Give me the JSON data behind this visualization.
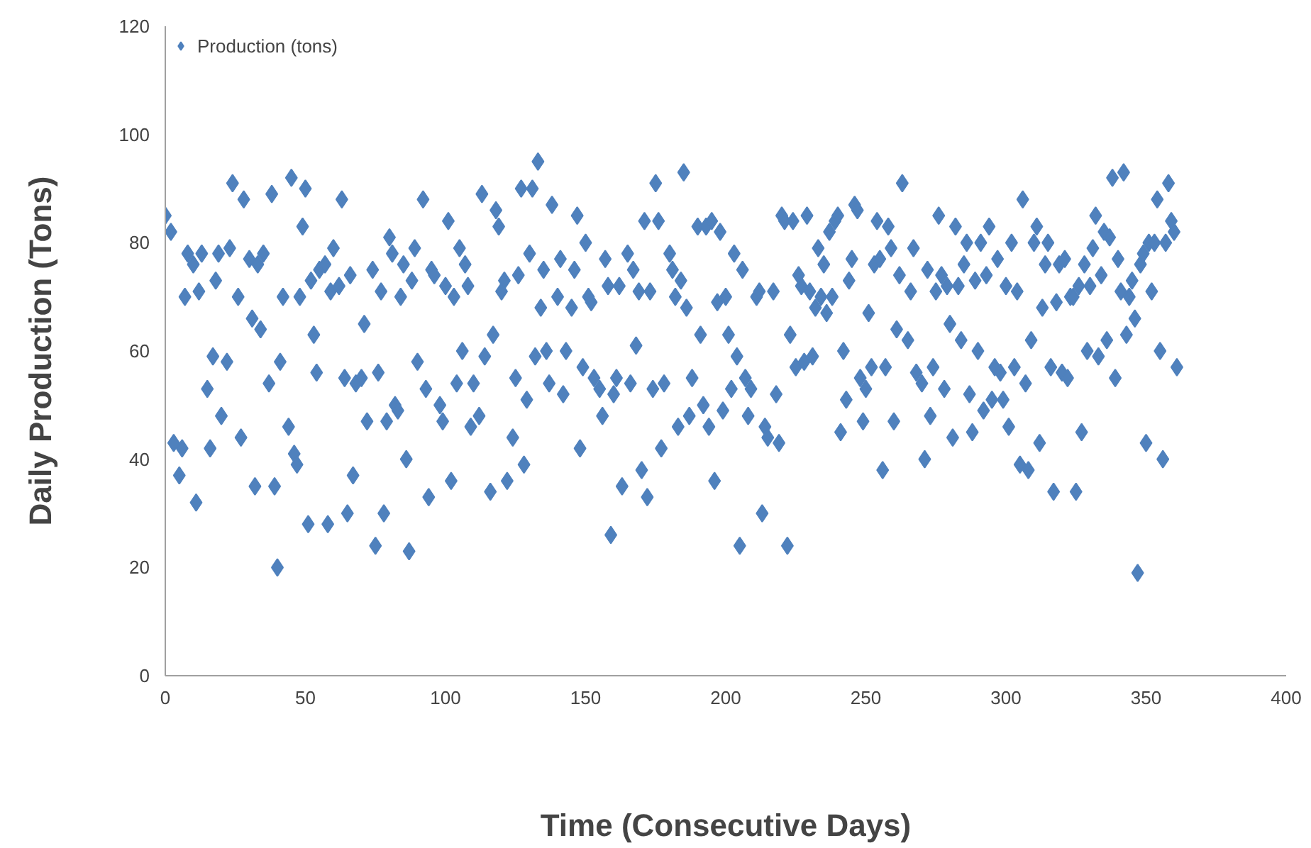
{
  "chart_data": {
    "type": "scatter",
    "xlabel": "Time (Consecutive Days)",
    "ylabel": "Daily Production (Tons)",
    "xlim": [
      0,
      400
    ],
    "xticks": [
      0,
      50,
      100,
      150,
      200,
      250,
      300,
      350,
      400
    ],
    "ylim": [
      0,
      120
    ],
    "yticks": [
      0,
      20,
      40,
      60,
      80,
      100,
      120
    ],
    "grid": false,
    "legend": "top left",
    "marker": "diamond",
    "x": [
      0,
      2,
      3,
      5,
      6,
      7,
      8,
      10,
      11,
      12,
      13,
      15,
      16,
      17,
      18,
      19,
      20,
      22,
      23,
      24,
      26,
      27,
      28,
      30,
      31,
      32,
      33,
      34,
      35,
      37,
      38,
      39,
      40,
      41,
      42,
      44,
      45,
      46,
      47,
      48,
      49,
      50,
      51,
      52,
      53,
      54,
      55,
      57,
      58,
      59,
      60,
      62,
      63,
      64,
      65,
      66,
      67,
      68,
      70,
      71,
      72,
      74,
      75,
      76,
      77,
      78,
      79,
      80,
      81,
      82,
      83,
      84,
      85,
      86,
      87,
      88,
      89,
      90,
      92,
      93,
      94,
      95,
      96,
      98,
      99,
      100,
      101,
      102,
      103,
      104,
      105,
      106,
      107,
      108,
      109,
      110,
      112,
      113,
      114,
      116,
      117,
      118,
      119,
      120,
      121,
      122,
      124,
      125,
      126,
      127,
      128,
      129,
      130,
      131,
      132,
      133,
      134,
      135,
      136,
      137,
      138,
      140,
      141,
      142,
      143,
      145,
      146,
      147,
      148,
      149,
      150,
      151,
      152,
      153,
      155,
      156,
      157,
      158,
      159,
      160,
      161,
      162,
      163,
      165,
      166,
      167,
      168,
      169,
      170,
      171,
      172,
      173,
      174,
      175,
      176,
      177,
      178,
      180,
      181,
      182,
      183,
      184,
      185,
      186,
      187,
      188,
      190,
      191,
      192,
      193,
      194,
      195,
      196,
      197,
      198,
      199,
      200,
      201,
      202,
      203,
      204,
      205,
      206,
      207,
      208,
      209,
      211,
      212,
      213,
      214,
      215,
      217,
      218,
      219,
      220,
      221,
      222,
      223,
      224,
      225,
      226,
      227,
      228,
      229,
      230,
      231,
      232,
      233,
      234,
      235,
      236,
      237,
      238,
      239,
      240,
      241,
      242,
      243,
      244,
      245,
      246,
      247,
      248,
      249,
      250,
      251,
      252,
      253,
      254,
      255,
      256,
      257,
      258,
      259,
      260,
      261,
      262,
      263,
      265,
      266,
      267,
      268,
      270,
      271,
      272,
      273,
      274,
      275,
      276,
      277,
      278,
      279,
      280,
      281,
      282,
      283,
      284,
      285,
      286,
      287,
      288,
      289,
      290,
      291,
      292,
      293,
      294,
      295,
      296,
      297,
      298,
      299,
      300,
      301,
      302,
      303,
      304,
      305,
      306,
      307,
      308,
      309,
      310,
      311,
      312,
      313,
      314,
      315,
      316,
      317,
      318,
      319,
      320,
      321,
      322,
      323,
      324,
      325,
      326,
      327,
      328,
      329,
      330,
      331,
      332,
      333,
      334,
      335,
      336,
      337,
      338,
      339,
      340,
      341,
      342,
      343,
      344,
      345,
      346,
      347,
      348,
      349,
      350,
      351,
      352,
      353,
      354,
      355,
      356,
      357,
      358,
      359,
      360,
      361
    ],
    "series": [
      {
        "name": "Production (tons)",
        "color": "#4f81bd",
        "values": [
          85,
          82,
          43,
          37,
          42,
          70,
          78,
          76,
          32,
          71,
          78,
          53,
          42,
          59,
          73,
          78,
          48,
          58,
          79,
          91,
          70,
          44,
          88,
          77,
          66,
          35,
          76,
          64,
          78,
          54,
          89,
          35,
          20,
          58,
          70,
          46,
          92,
          41,
          39,
          70,
          83,
          90,
          28,
          73,
          63,
          56,
          75,
          76,
          28,
          71,
          79,
          72,
          88,
          55,
          30,
          74,
          37,
          54,
          55,
          65,
          47,
          75,
          24,
          56,
          71,
          30,
          47,
          81,
          78,
          50,
          49,
          70,
          76,
          40,
          23,
          73,
          79,
          58,
          88,
          53,
          33,
          75,
          74,
          50,
          47,
          72,
          84,
          36,
          70,
          54,
          79,
          60,
          76,
          72,
          46,
          54,
          48,
          89,
          59,
          34,
          63,
          86,
          83,
          71,
          73,
          36,
          44,
          55,
          74,
          90,
          39,
          51,
          78,
          90,
          59,
          95,
          68,
          75,
          60,
          54,
          87,
          70,
          77,
          52,
          60,
          68,
          75,
          85,
          42,
          57,
          80,
          70,
          69,
          55,
          53,
          48,
          77,
          72,
          26,
          52,
          55,
          72,
          35,
          78,
          54,
          75,
          61,
          71,
          38,
          84,
          33,
          71,
          53,
          91,
          84,
          42,
          54,
          78,
          75,
          70,
          46,
          73,
          93,
          68,
          48,
          55,
          83,
          63,
          50,
          83,
          46,
          84,
          36,
          69,
          82,
          49,
          70,
          63,
          53,
          78,
          59,
          24,
          75,
          55,
          48,
          53,
          70,
          71,
          30,
          46,
          44,
          71,
          52,
          43,
          85,
          84,
          24,
          63,
          84,
          57,
          74,
          72,
          58,
          85,
          71,
          59,
          68,
          79,
          70,
          76,
          67,
          82,
          70,
          84,
          85,
          45,
          60,
          51,
          73,
          77,
          87,
          86,
          55,
          47,
          53,
          67,
          57,
          76,
          84,
          77,
          38,
          57,
          83,
          79,
          47,
          64,
          74,
          91,
          62,
          71,
          79,
          56,
          54,
          40,
          75,
          48,
          57,
          71,
          85,
          74,
          53,
          72,
          65,
          44,
          83,
          72,
          62,
          76,
          80,
          52,
          45,
          73,
          60,
          80,
          49,
          74,
          83,
          51,
          57,
          77,
          56,
          51,
          72,
          46,
          80,
          57,
          71,
          39,
          88,
          54,
          38,
          62,
          80,
          83,
          43,
          68,
          76,
          80,
          57,
          34,
          69,
          76,
          56,
          77,
          55,
          70,
          70,
          34,
          72,
          45,
          76,
          60,
          72,
          79,
          85,
          59,
          74,
          82,
          62,
          81,
          92,
          55,
          77,
          71,
          93,
          63,
          70,
          73,
          66,
          19,
          76,
          78,
          43,
          80,
          71,
          80,
          88,
          60,
          40,
          80,
          91,
          84,
          82,
          57
        ]
      }
    ]
  }
}
